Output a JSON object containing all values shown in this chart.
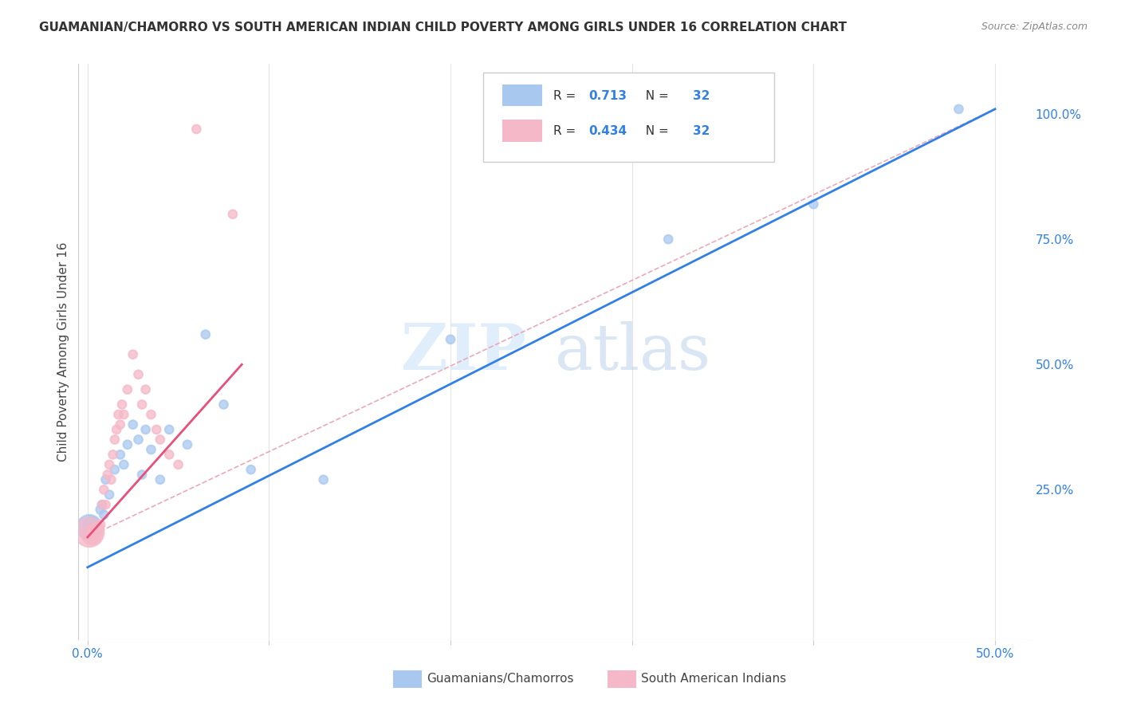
{
  "title": "GUAMANIAN/CHAMORRO VS SOUTH AMERICAN INDIAN CHILD POVERTY AMONG GIRLS UNDER 16 CORRELATION CHART",
  "source": "Source: ZipAtlas.com",
  "ylabel": "Child Poverty Among Girls Under 16",
  "watermark": "ZIPatlas",
  "xlim": [
    -0.005,
    0.52
  ],
  "ylim": [
    -0.05,
    1.1
  ],
  "xticks": [
    0.0,
    0.1,
    0.2,
    0.3,
    0.4,
    0.5
  ],
  "xtick_labels": [
    "0.0%",
    "",
    "",
    "",
    "",
    "50.0%"
  ],
  "yticks_right": [
    0.25,
    0.5,
    0.75,
    1.0
  ],
  "ytick_labels_right": [
    "25.0%",
    "50.0%",
    "75.0%",
    "100.0%"
  ],
  "legend_R_blue": "0.713",
  "legend_N_blue": "32",
  "legend_R_pink": "0.434",
  "legend_N_pink": "32",
  "legend_label_blue": "Guamanians/Chamorros",
  "legend_label_pink": "South American Indians",
  "blue_color": "#A8C8F0",
  "pink_color": "#F5B8C8",
  "blue_line_color": "#3080E8",
  "pink_line_color": "#E8507A",
  "ref_line_color": "#E8A0B0",
  "title_fontsize": 11,
  "source_fontsize": 9,
  "tick_fontsize": 11,
  "ylabel_fontsize": 11,
  "blue_x": [
    0.001,
    0.002,
    0.003,
    0.003,
    0.004,
    0.005,
    0.006,
    0.007,
    0.008,
    0.009,
    0.01,
    0.012,
    0.015,
    0.018,
    0.02,
    0.022,
    0.025,
    0.028,
    0.03,
    0.032,
    0.035,
    0.04,
    0.045,
    0.055,
    0.065,
    0.075,
    0.09,
    0.13,
    0.2,
    0.32,
    0.4,
    0.48
  ],
  "blue_y": [
    0.175,
    0.18,
    0.17,
    0.175,
    0.18,
    0.17,
    0.175,
    0.21,
    0.22,
    0.2,
    0.27,
    0.24,
    0.29,
    0.32,
    0.3,
    0.34,
    0.38,
    0.35,
    0.28,
    0.37,
    0.33,
    0.27,
    0.37,
    0.34,
    0.56,
    0.42,
    0.29,
    0.27,
    0.55,
    0.75,
    0.82,
    1.01
  ],
  "blue_sizes": [
    500,
    200,
    120,
    100,
    90,
    80,
    70,
    60,
    60,
    60,
    60,
    60,
    60,
    60,
    60,
    60,
    60,
    60,
    60,
    60,
    60,
    60,
    60,
    60,
    60,
    60,
    60,
    60,
    60,
    60,
    60,
    60
  ],
  "pink_x": [
    0.001,
    0.002,
    0.003,
    0.004,
    0.005,
    0.006,
    0.007,
    0.008,
    0.009,
    0.01,
    0.011,
    0.012,
    0.013,
    0.014,
    0.015,
    0.016,
    0.017,
    0.018,
    0.019,
    0.02,
    0.022,
    0.025,
    0.028,
    0.03,
    0.032,
    0.035,
    0.038,
    0.04,
    0.045,
    0.05,
    0.06,
    0.08
  ],
  "pink_y": [
    0.165,
    0.16,
    0.155,
    0.17,
    0.16,
    0.17,
    0.18,
    0.22,
    0.25,
    0.22,
    0.28,
    0.3,
    0.27,
    0.32,
    0.35,
    0.37,
    0.4,
    0.38,
    0.42,
    0.4,
    0.45,
    0.52,
    0.48,
    0.42,
    0.45,
    0.4,
    0.37,
    0.35,
    0.32,
    0.3,
    0.97,
    0.8
  ],
  "pink_sizes": [
    700,
    300,
    180,
    130,
    100,
    80,
    70,
    60,
    60,
    60,
    60,
    60,
    60,
    60,
    60,
    60,
    60,
    60,
    60,
    60,
    60,
    60,
    60,
    60,
    60,
    60,
    60,
    60,
    60,
    60,
    60,
    60
  ],
  "blue_line_x0": 0.0,
  "blue_line_y0": 0.095,
  "blue_line_x1": 0.5,
  "blue_line_y1": 1.01,
  "pink_line_x0": 0.0,
  "pink_line_y0": 0.155,
  "pink_line_x1": 0.085,
  "pink_line_y1": 0.5,
  "ref_line_x0": 0.0,
  "ref_line_y0": 0.155,
  "ref_line_x1": 0.5,
  "ref_line_y1": 1.01
}
